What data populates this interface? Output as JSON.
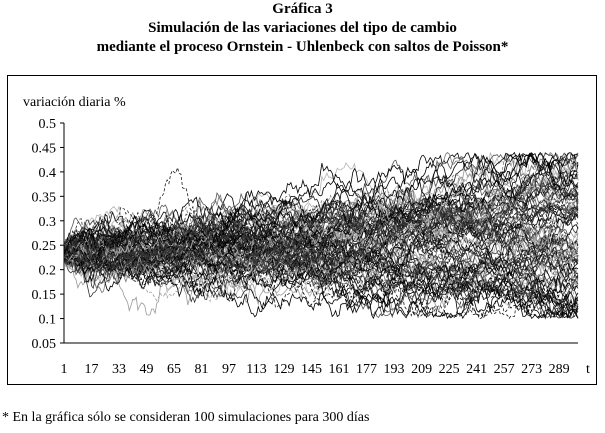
{
  "header": {
    "title": "Gráfica 3",
    "subtitle_line1": "Simulación de las variaciones del tipo de cambio",
    "subtitle_line2": "mediante el proceso Ornstein - Uhlenbeck con saltos de Poisson*"
  },
  "footnote": "* En la gráfica sólo se consideran 100 simulaciones para 300 días",
  "chart_data": {
    "type": "line",
    "ylabel": "variación diaria %",
    "xlabel": "t",
    "ylim": [
      0.05,
      0.5
    ],
    "y_ticks": [
      "0.5",
      "0.45",
      "0.4",
      "0.35",
      "0.3",
      "0.25",
      "0.2",
      "0.15",
      "0.1",
      "0.05"
    ],
    "x_ticks": [
      "1",
      "17",
      "33",
      "49",
      "65",
      "81",
      "97",
      "113",
      "129",
      "145",
      "161",
      "177",
      "193",
      "209",
      "225",
      "241",
      "257",
      "273",
      "289"
    ],
    "x_range": [
      1,
      300
    ],
    "n_simulations": 100,
    "start_value": 0.233,
    "final_band": [
      0.12,
      0.43
    ],
    "grid": false,
    "legend": "none"
  }
}
